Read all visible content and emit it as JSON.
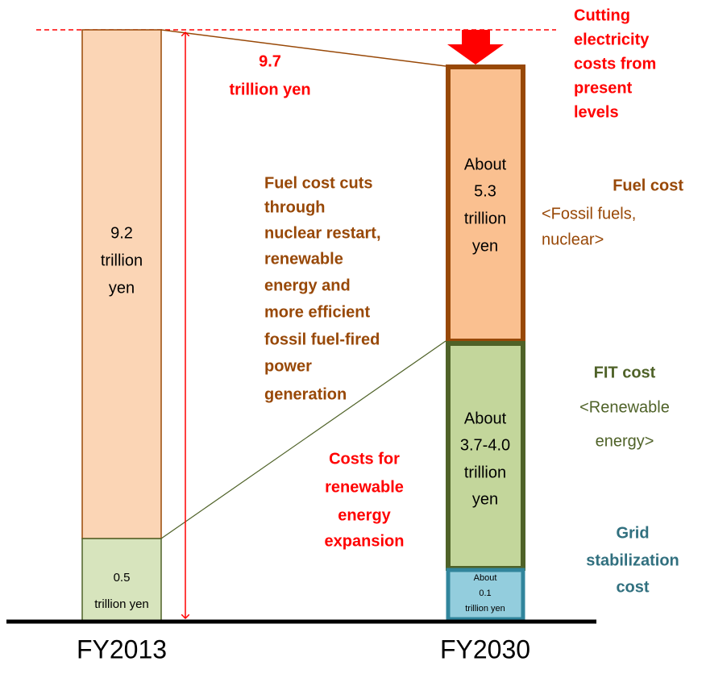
{
  "axis_labels": [
    "FY2013",
    "FY2030"
  ],
  "fy2013": {
    "fuel": [
      "9.2",
      "trillion",
      "yen"
    ],
    "fit": [
      "0.5",
      "trillion yen"
    ]
  },
  "fy2030": {
    "fuel": [
      "About",
      "5.3",
      "trillion",
      "yen"
    ],
    "fit": [
      "About",
      "3.7-4.0",
      "trillion",
      "yen"
    ],
    "grid": [
      "About",
      "0.1",
      "trillion yen"
    ]
  },
  "reduction": [
    "9.7",
    "trillion yen"
  ],
  "cutting": [
    "Cutting",
    "electricity",
    "costs from",
    "present",
    "levels"
  ],
  "fuel_cuts": [
    "Fuel cost cuts",
    "through",
    "nuclear restart,",
    "renewable",
    "energy and",
    "more efficient",
    "fossil fuel-fired",
    "power",
    "generation"
  ],
  "renewable_costs": [
    "Costs for",
    "renewable",
    "energy",
    "expansion"
  ],
  "legend": {
    "fuel": {
      "title": "Fuel cost",
      "note": [
        "<Fossil fuels,",
        "nuclear>"
      ]
    },
    "fit": {
      "title": "FIT cost",
      "note": [
        "<Renewable",
        "energy>"
      ]
    },
    "grid": {
      "title": [
        "Grid",
        "stabilization",
        "cost"
      ]
    }
  }
}
